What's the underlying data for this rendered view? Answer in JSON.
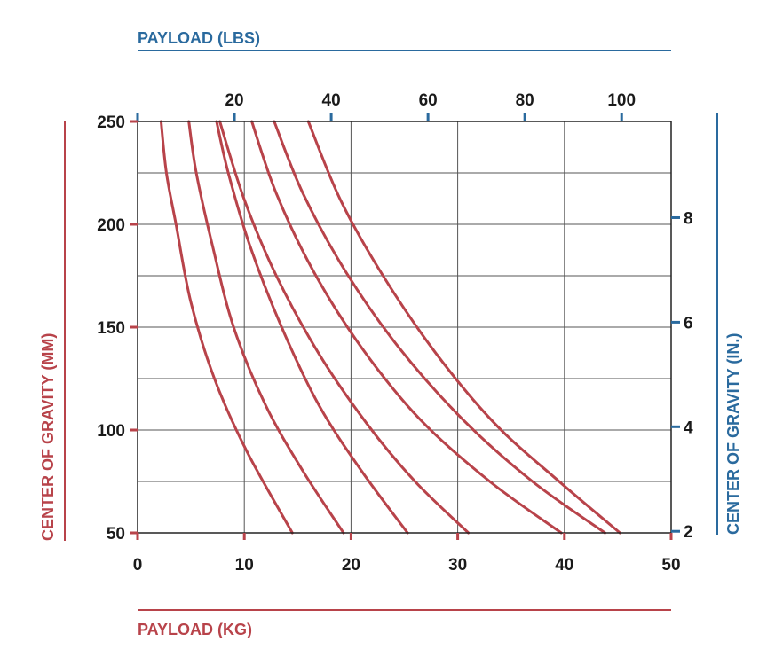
{
  "chart_data": {
    "type": "line",
    "x_bottom": {
      "label": "PAYLOAD (KG)",
      "range": [
        0,
        50
      ],
      "ticks": [
        0,
        10,
        20,
        30,
        40,
        50
      ]
    },
    "x_top": {
      "label": "PAYLOAD (LBS)",
      "range": [
        0,
        110.23
      ],
      "ticks": [
        20,
        40,
        60,
        80,
        100
      ]
    },
    "y_left": {
      "label": "CENTER OF GRAVITY (MM)",
      "range": [
        50,
        250
      ],
      "ticks": [
        50,
        100,
        150,
        200,
        250
      ]
    },
    "y_right": {
      "label": "CENTER OF GRAVITY (IN.)",
      "range": [
        1.97,
        9.84
      ],
      "ticks": [
        2,
        4,
        6,
        8
      ]
    },
    "grid": true,
    "series": [
      {
        "x": [
          2.2,
          2.7,
          3.6,
          5.0,
          7.2,
          10.2,
          14.5
        ],
        "y": [
          250,
          225,
          200,
          162,
          125,
          90,
          50
        ]
      },
      {
        "x": [
          4.8,
          5.5,
          7.0,
          9.0,
          12.0,
          15.5,
          19.3
        ],
        "y": [
          250,
          225,
          190,
          150,
          112,
          80,
          50
        ]
      },
      {
        "x": [
          7.4,
          8.5,
          10.5,
          13.5,
          17.0,
          21.0,
          25.3
        ],
        "y": [
          250,
          225,
          190,
          150,
          112,
          80,
          50
        ]
      },
      {
        "x": [
          7.7,
          10.0,
          13.0,
          17.0,
          21.5,
          26.0,
          31.0
        ],
        "y": [
          250,
          212,
          175,
          137,
          103,
          75,
          50
        ]
      },
      {
        "x": [
          10.7,
          13.0,
          16.5,
          21.0,
          26.5,
          33.0,
          39.7
        ],
        "y": [
          250,
          215,
          177,
          140,
          105,
          75,
          50
        ]
      },
      {
        "x": [
          12.8,
          15.5,
          19.5,
          24.5,
          30.5,
          37.0,
          43.8
        ],
        "y": [
          250,
          215,
          177,
          140,
          105,
          75,
          50
        ]
      },
      {
        "x": [
          16.0,
          19.0,
          23.0,
          28.0,
          33.5,
          39.5,
          45.2
        ],
        "y": [
          250,
          212,
          175,
          137,
          103,
          75,
          50
        ]
      }
    ],
    "colors": {
      "line": "#b8434a",
      "metric_axis": "#b8434a",
      "imperial_axis": "#2a6a9e",
      "grid": "#555555"
    }
  }
}
